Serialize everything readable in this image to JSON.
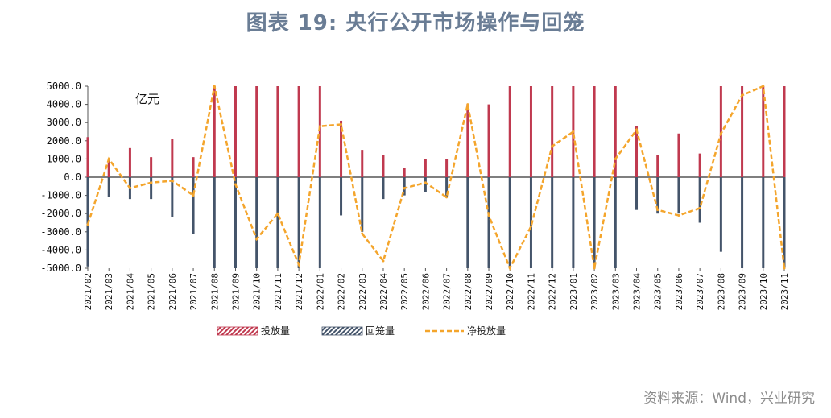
{
  "header": {
    "title": "图表 19: 央行公开市场操作与回笼"
  },
  "source": "资料来源：Wind，兴业研究",
  "chart_data": {
    "type": "bar",
    "unit_label": "亿元",
    "ylim": [
      -5000,
      5000
    ],
    "yticks": [
      "5000.0",
      "4000.0",
      "3000.0",
      "2000.0",
      "1000.0",
      "0.0",
      "-1000.0",
      "-2000.0",
      "-3000.0",
      "-4000.0",
      "-5000.0"
    ],
    "categories": [
      "2021/02",
      "2021/03",
      "2021/04",
      "2021/05",
      "2021/06",
      "2021/07",
      "2021/08",
      "2021/09",
      "2021/10",
      "2021/11",
      "2021/12",
      "2022/01",
      "2022/02",
      "2022/03",
      "2022/04",
      "2022/05",
      "2022/06",
      "2022/07",
      "2022/08",
      "2022/09",
      "2022/10",
      "2022/11",
      "2022/12",
      "2023/01",
      "2023/02",
      "2023/03",
      "2023/04",
      "2023/05",
      "2023/06",
      "2023/07",
      "2023/08",
      "2023/09",
      "2023/10",
      "2023/11"
    ],
    "series": [
      {
        "name": "投放量",
        "type": "bar",
        "color": "#c0394f",
        "values": [
          2200,
          1000,
          1600,
          1100,
          2100,
          1100,
          5000,
          5000,
          5000,
          5000,
          5000,
          5000,
          3100,
          1500,
          1200,
          500,
          1000,
          1000,
          4000,
          4000,
          5000,
          5000,
          5000,
          5000,
          5000,
          5000,
          2800,
          1200,
          2400,
          1300,
          5000,
          5000,
          5000,
          5000
        ]
      },
      {
        "name": "回笼量",
        "type": "bar",
        "color": "#44546a",
        "values": [
          -4900,
          -1100,
          -1200,
          -1200,
          -2200,
          -3100,
          -5000,
          -5000,
          -5000,
          -5000,
          -5000,
          -5000,
          -2100,
          -3000,
          -1200,
          -1000,
          -800,
          -1100,
          -5000,
          -5000,
          -5000,
          -5000,
          -5000,
          -5000,
          -5000,
          -5000,
          -1800,
          -2000,
          -2000,
          -2500,
          -4100,
          -5000,
          -5000,
          -5000
        ]
      },
      {
        "name": "净投放量",
        "type": "line",
        "color": "#f4a52c",
        "values": [
          -2600,
          1000,
          -600,
          -300,
          -200,
          -1000,
          5000,
          -400,
          -3400,
          -2000,
          -4800,
          2800,
          2900,
          -3100,
          -4600,
          -600,
          -300,
          -1100,
          4000,
          -2100,
          -5000,
          -2700,
          1700,
          2500,
          -5000,
          1000,
          2600,
          -1800,
          -2100,
          -1700,
          2400,
          4500,
          5000,
          -5000
        ]
      }
    ],
    "legend": [
      "投放量",
      "回笼量",
      "净投放量"
    ],
    "legend_position": "bottom"
  }
}
